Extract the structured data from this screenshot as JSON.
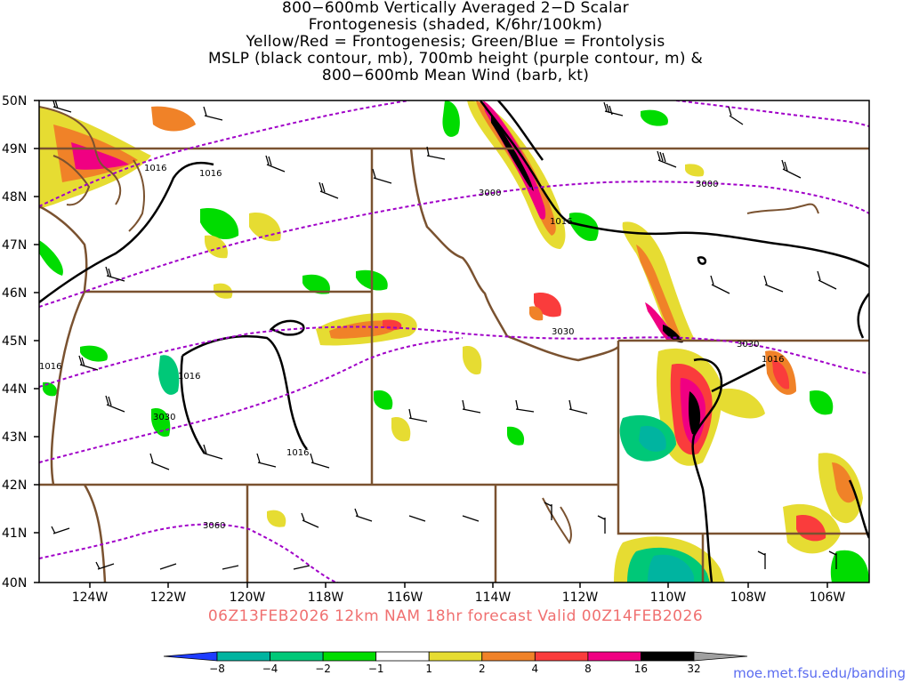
{
  "title_lines": [
    "800−600mb Vertically Averaged 2−D Scalar",
    "Frontogenesis (shaded, K/6hr/100km)",
    "Yellow/Red = Frontogenesis;  Green/Blue = Frontolysis",
    "MSLP (black contour, mb), 700mb height (purple contour, m) &",
    "800−600mb Mean Wind (barb, kt)"
  ],
  "lat_labels": [
    "50N",
    "49N",
    "48N",
    "47N",
    "46N",
    "45N",
    "44N",
    "43N",
    "42N",
    "41N",
    "40N"
  ],
  "lon_labels": [
    "124W",
    "122W",
    "120W",
    "118W",
    "116W",
    "114W",
    "112W",
    "110W",
    "108W",
    "106W"
  ],
  "contour_labels": {
    "mslp": [
      "1016",
      "1016",
      "1016",
      "1016",
      "1016",
      "1016",
      "1016"
    ],
    "height": [
      "3000",
      "3000",
      "3030",
      "3030",
      "3030",
      "3060"
    ]
  },
  "valid_text": "06Z13FEB2026 12km NAM 18hr forecast Valid 00Z14FEB2026",
  "credit": "moe.met.fsu.edu/banding",
  "colorbar": {
    "labels": [
      "−8",
      "−4",
      "−2",
      "−1",
      "1",
      "2",
      "4",
      "8",
      "16",
      "32"
    ],
    "colors": [
      "#1e3cff",
      "#00b4a0",
      "#00c878",
      "#00dc00",
      "#ffffff",
      "#e6dc32",
      "#f08228",
      "#fa3c3c",
      "#f00082",
      "#000000",
      "#a0a0a0"
    ]
  },
  "colors": {
    "mslp": "#000000",
    "height": "#a000c8",
    "borders": "#7a5230",
    "valid": "#f07070",
    "credit": "#5b6cf0"
  }
}
